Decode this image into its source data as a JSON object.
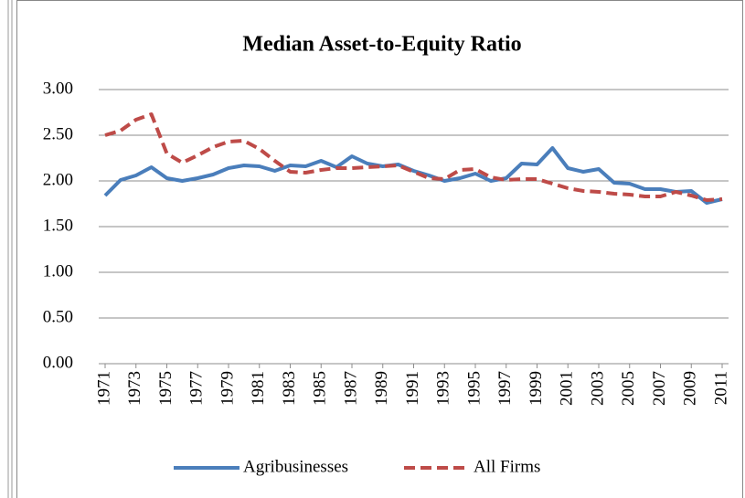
{
  "chart_data": {
    "type": "line",
    "title": "Median Asset-to-Equity Ratio",
    "x": [
      1971,
      1972,
      1973,
      1974,
      1975,
      1976,
      1977,
      1978,
      1979,
      1980,
      1981,
      1982,
      1983,
      1984,
      1985,
      1986,
      1987,
      1988,
      1989,
      1990,
      1991,
      1992,
      1993,
      1994,
      1995,
      1996,
      1997,
      1998,
      1999,
      2000,
      2001,
      2002,
      2003,
      2004,
      2005,
      2006,
      2007,
      2008,
      2009,
      2010,
      2011
    ],
    "xlim": [
      1971,
      2011
    ],
    "xticks": [
      1971,
      1973,
      1975,
      1977,
      1979,
      1981,
      1983,
      1985,
      1987,
      1989,
      1991,
      1993,
      1995,
      1997,
      1999,
      2001,
      2003,
      2005,
      2007,
      2009,
      2011
    ],
    "ylim": [
      0,
      3
    ],
    "yticks": [
      {
        "value": 0,
        "label": "0.00"
      },
      {
        "value": 0.5,
        "label": "0.50"
      },
      {
        "value": 1,
        "label": "1.00"
      },
      {
        "value": 1.5,
        "label": "1.50"
      },
      {
        "value": 2,
        "label": "2.00"
      },
      {
        "value": 2.5,
        "label": "2.50"
      },
      {
        "value": 3,
        "label": "3.00"
      }
    ],
    "grid": true,
    "legend": "bottom",
    "series": [
      {
        "name": "Agribusinesses",
        "color": "#4a7ebb",
        "dash": false,
        "values": [
          1.84,
          2.01,
          2.06,
          2.15,
          2.03,
          2.0,
          2.03,
          2.07,
          2.14,
          2.17,
          2.16,
          2.11,
          2.17,
          2.16,
          2.22,
          2.15,
          2.27,
          2.19,
          2.16,
          2.18,
          2.11,
          2.06,
          2.0,
          2.03,
          2.08,
          2.0,
          2.03,
          2.19,
          2.18,
          2.36,
          2.14,
          2.1,
          2.13,
          1.98,
          1.97,
          1.91,
          1.91,
          1.88,
          1.89,
          1.76,
          1.8
        ]
      },
      {
        "name": "All Firms",
        "color": "#be4b48",
        "dash": true,
        "values": [
          2.5,
          2.55,
          2.67,
          2.73,
          2.3,
          2.2,
          2.28,
          2.37,
          2.43,
          2.44,
          2.35,
          2.22,
          2.1,
          2.09,
          2.12,
          2.14,
          2.14,
          2.15,
          2.16,
          2.17,
          2.1,
          2.03,
          2.02,
          2.12,
          2.13,
          2.04,
          2.01,
          2.02,
          2.02,
          1.97,
          1.92,
          1.89,
          1.88,
          1.86,
          1.85,
          1.83,
          1.83,
          1.88,
          1.84,
          1.79,
          1.8
        ]
      }
    ]
  }
}
